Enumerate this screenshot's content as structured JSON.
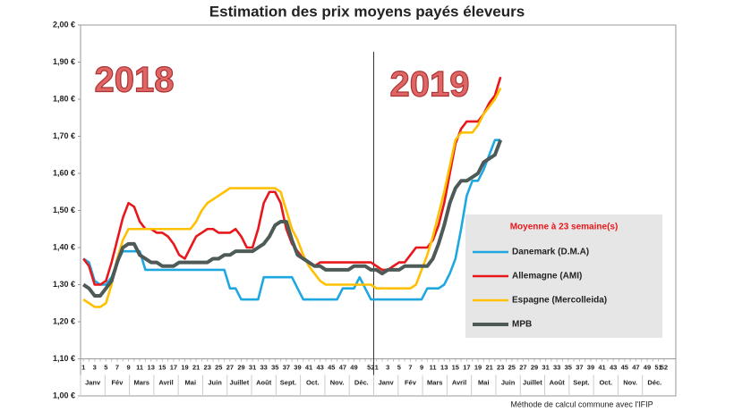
{
  "chart_data": {
    "type": "line",
    "title": "Estimation des prix moyens payés éleveurs",
    "annotations": [
      "2018",
      "2019"
    ],
    "note": "Méthode de calcul commune avec l'IFIP",
    "legend_title": "Moyenne à  23 semaine(s)",
    "months": [
      "Janv",
      "Fév",
      "Mars",
      "Avril",
      "Mai",
      "Juin",
      "Juillet",
      "Août",
      "Sept.",
      "Oct.",
      "Nov.",
      "Déc.",
      "Janv",
      "Fév",
      "Mars",
      "Avril",
      "Mai",
      "Juin",
      "Juillet",
      "Août",
      "Sept.",
      "Oct.",
      "Nov.",
      "Déc."
    ],
    "categories": [
      "1",
      null,
      "3",
      null,
      "5",
      null,
      "7",
      null,
      "9",
      null,
      "11",
      null,
      "13",
      null,
      "15",
      null,
      "17",
      null,
      "19",
      null,
      "21",
      null,
      "23",
      null,
      "25",
      null,
      "27",
      null,
      "29",
      null,
      "31",
      null,
      "33",
      null,
      "35",
      null,
      "37",
      null,
      "39",
      null,
      "41",
      null,
      "43",
      null,
      "45",
      null,
      "47",
      null,
      "49",
      null,
      null,
      "52",
      "1",
      null,
      "3",
      null,
      "5",
      null,
      "7",
      null,
      "9",
      null,
      "11",
      null,
      "13",
      null,
      "15",
      null,
      "17",
      null,
      "19",
      null,
      "21",
      null,
      "23",
      null,
      "25",
      null,
      "27",
      null,
      "29",
      null,
      "31",
      null,
      "33",
      null,
      "35",
      null,
      "37",
      null,
      "39",
      null,
      "41",
      null,
      "43",
      null,
      "45",
      null,
      "47",
      null,
      "49",
      null,
      "51",
      "52"
    ],
    "ylim": [
      1.0,
      2.0
    ],
    "yticks": [
      {
        "value": 1.0,
        "label": "1,00 €"
      },
      {
        "value": 1.1,
        "label": "1,10 €"
      },
      {
        "value": 1.2,
        "label": "1,20 €"
      },
      {
        "value": 1.3,
        "label": "1,30 €"
      },
      {
        "value": 1.4,
        "label": "1,40 €"
      },
      {
        "value": 1.5,
        "label": "1,50 €"
      },
      {
        "value": 1.6,
        "label": "1,60 €"
      },
      {
        "value": 1.7,
        "label": "1,70 €"
      },
      {
        "value": 1.8,
        "label": "1,80 €"
      },
      {
        "value": 1.9,
        "label": "1,90 €"
      },
      {
        "value": 2.0,
        "label": "2,00 €"
      }
    ],
    "series": [
      {
        "name": "Danemark (D.M.A)",
        "color": "#1fa8e0",
        "values": [
          1.37,
          1.36,
          1.31,
          1.3,
          1.3,
          1.32,
          1.36,
          1.39,
          1.39,
          1.39,
          1.39,
          1.34,
          1.34,
          1.34,
          1.34,
          1.34,
          1.34,
          1.34,
          1.34,
          1.34,
          1.34,
          1.34,
          1.34,
          1.34,
          1.34,
          1.34,
          1.29,
          1.29,
          1.26,
          1.26,
          1.26,
          1.26,
          1.32,
          1.32,
          1.32,
          1.32,
          1.32,
          1.32,
          1.29,
          1.26,
          1.26,
          1.26,
          1.26,
          1.26,
          1.26,
          1.26,
          1.29,
          1.29,
          1.29,
          1.32,
          1.29,
          1.26,
          1.26,
          1.26,
          1.26,
          1.26,
          1.26,
          1.26,
          1.26,
          1.26,
          1.26,
          1.29,
          1.29,
          1.29,
          1.3,
          1.33,
          1.37,
          1.45,
          1.54,
          1.58,
          1.58,
          1.61,
          1.65,
          1.69,
          1.69,
          null,
          null,
          null,
          null,
          null,
          null,
          null,
          null,
          null,
          null,
          null,
          null,
          null,
          null,
          null,
          null,
          null,
          null,
          null,
          null,
          null,
          null,
          null,
          null,
          null,
          null,
          null,
          null,
          null
        ]
      },
      {
        "name": "Allemagne (AMI)",
        "color": "#e8171b",
        "values": [
          1.37,
          1.35,
          1.3,
          1.3,
          1.31,
          1.36,
          1.42,
          1.48,
          1.52,
          1.51,
          1.47,
          1.45,
          1.45,
          1.44,
          1.44,
          1.43,
          1.41,
          1.38,
          1.37,
          1.4,
          1.43,
          1.44,
          1.45,
          1.45,
          1.44,
          1.44,
          1.44,
          1.45,
          1.43,
          1.4,
          1.4,
          1.45,
          1.52,
          1.55,
          1.55,
          1.52,
          1.45,
          1.41,
          1.39,
          1.37,
          1.36,
          1.35,
          1.36,
          1.36,
          1.36,
          1.36,
          1.36,
          1.36,
          1.36,
          1.36,
          1.36,
          1.36,
          1.35,
          1.34,
          1.34,
          1.35,
          1.36,
          1.36,
          1.38,
          1.4,
          1.4,
          1.4,
          1.42,
          1.46,
          1.52,
          1.6,
          1.68,
          1.72,
          1.74,
          1.74,
          1.74,
          1.76,
          1.79,
          1.81,
          1.86,
          null,
          null,
          null,
          null,
          null,
          null,
          null,
          null,
          null,
          null,
          null,
          null,
          null,
          null,
          null,
          null,
          null,
          null,
          null,
          null,
          null,
          null,
          null,
          null,
          null,
          null,
          null,
          null,
          null
        ]
      },
      {
        "name": "Espagne (Mercolleida)",
        "color": "#ffc000",
        "values": [
          1.26,
          1.25,
          1.24,
          1.24,
          1.25,
          1.3,
          1.37,
          1.42,
          1.45,
          1.45,
          1.45,
          1.45,
          1.45,
          1.45,
          1.45,
          1.45,
          1.45,
          1.45,
          1.45,
          1.45,
          1.47,
          1.5,
          1.52,
          1.53,
          1.54,
          1.55,
          1.56,
          1.56,
          1.56,
          1.56,
          1.56,
          1.56,
          1.56,
          1.56,
          1.56,
          1.55,
          1.5,
          1.45,
          1.42,
          1.38,
          1.35,
          1.33,
          1.31,
          1.3,
          1.3,
          1.3,
          1.3,
          1.3,
          1.3,
          1.3,
          1.3,
          1.3,
          1.29,
          1.29,
          1.29,
          1.29,
          1.29,
          1.29,
          1.29,
          1.3,
          1.34,
          1.38,
          1.43,
          1.49,
          1.55,
          1.62,
          1.69,
          1.71,
          1.71,
          1.71,
          1.73,
          1.76,
          1.78,
          1.8,
          1.83,
          null,
          null,
          null,
          null,
          null,
          null,
          null,
          null,
          null,
          null,
          null,
          null,
          null,
          null,
          null,
          null,
          null,
          null,
          null,
          null,
          null,
          null,
          null,
          null,
          null,
          null,
          null,
          null,
          null
        ]
      },
      {
        "name": "MPB",
        "color": "#4d5a57",
        "values": [
          1.3,
          1.29,
          1.27,
          1.27,
          1.29,
          1.31,
          1.36,
          1.4,
          1.41,
          1.41,
          1.38,
          1.37,
          1.36,
          1.36,
          1.35,
          1.35,
          1.35,
          1.36,
          1.36,
          1.36,
          1.36,
          1.36,
          1.36,
          1.37,
          1.37,
          1.38,
          1.38,
          1.39,
          1.39,
          1.39,
          1.39,
          1.4,
          1.41,
          1.43,
          1.46,
          1.47,
          1.47,
          1.42,
          1.38,
          1.37,
          1.36,
          1.35,
          1.35,
          1.34,
          1.34,
          1.34,
          1.34,
          1.34,
          1.35,
          1.35,
          1.35,
          1.34,
          1.34,
          1.33,
          1.34,
          1.34,
          1.34,
          1.35,
          1.35,
          1.35,
          1.35,
          1.35,
          1.37,
          1.41,
          1.46,
          1.52,
          1.56,
          1.58,
          1.58,
          1.59,
          1.6,
          1.63,
          1.64,
          1.65,
          1.69,
          null,
          null,
          null,
          null,
          null,
          null,
          null,
          null,
          null,
          null,
          null,
          null,
          null,
          null,
          null,
          null,
          null,
          null,
          null,
          null,
          null,
          null,
          null,
          null,
          null,
          null,
          null,
          null,
          null
        ]
      }
    ]
  }
}
